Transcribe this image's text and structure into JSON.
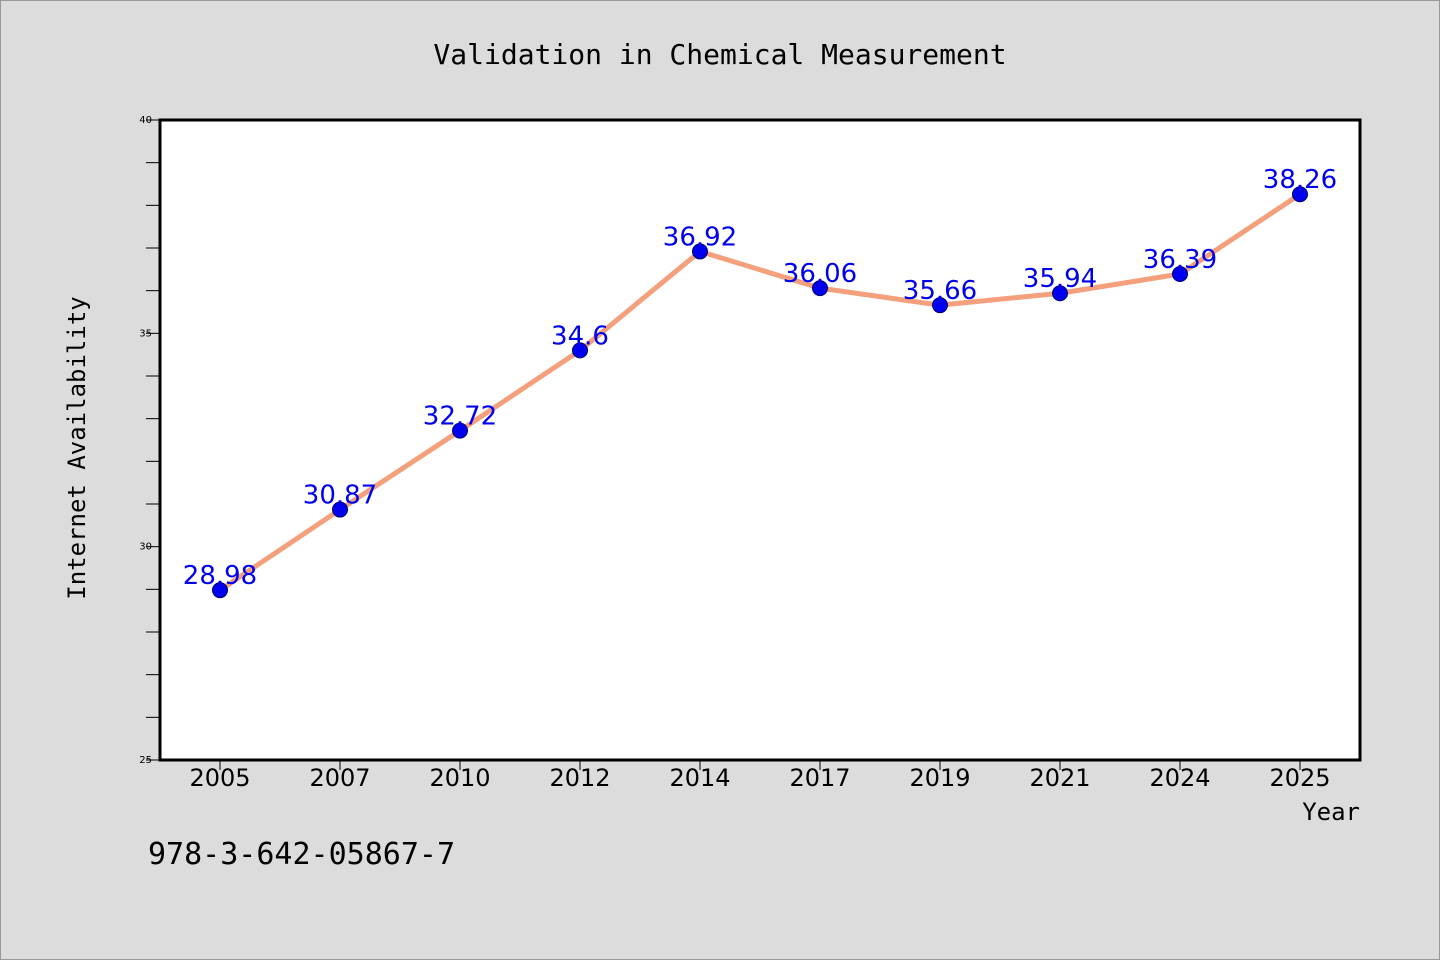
{
  "chart_data": {
    "type": "line",
    "title": "Validation in Chemical Measurement",
    "xlabel": "Year",
    "ylabel": "Internet Availability",
    "categories": [
      "2005",
      "2007",
      "2010",
      "2012",
      "2014",
      "2017",
      "2019",
      "2021",
      "2024",
      "2025"
    ],
    "series": [
      {
        "values": [
          28.98,
          30.87,
          32.72,
          34.6,
          36.92,
          36.06,
          35.66,
          35.94,
          36.39,
          38.26
        ],
        "labels": [
          "28.98",
          "30.87",
          "32.72",
          "34.6",
          "36.92",
          "36.06",
          "35.66",
          "35.94",
          "36.39",
          "38.26"
        ]
      }
    ],
    "ylim": [
      25,
      40
    ],
    "yticks": [
      "25",
      "30",
      "35",
      "40"
    ],
    "grid": false,
    "legend": "none",
    "colors": {
      "line": "#f4a07c",
      "marker": "#0000ee",
      "label": "#0000ee"
    }
  },
  "footer_text": "978-3-642-05867-7"
}
